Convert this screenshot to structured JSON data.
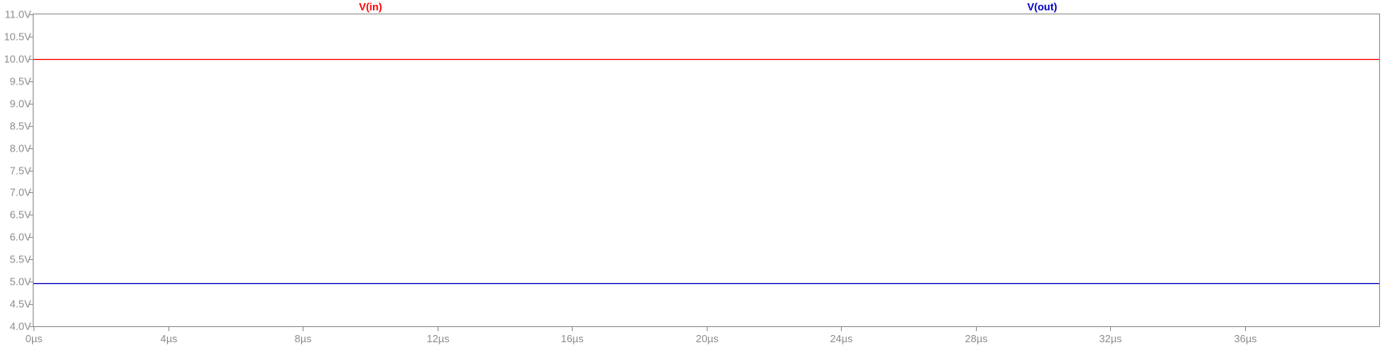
{
  "chart_data": {
    "type": "line",
    "x": [
      0,
      40
    ],
    "series": [
      {
        "name": "V(in)",
        "values": [
          10.0,
          10.0
        ],
        "color": "#ff0000"
      },
      {
        "name": "V(out)",
        "values": [
          4.97,
          4.97
        ],
        "color": "#0000c0"
      }
    ],
    "xlim": [
      0,
      40
    ],
    "ylim": [
      4.0,
      11.0
    ],
    "x_ticks": [
      0,
      4,
      8,
      12,
      16,
      20,
      24,
      28,
      32,
      36
    ],
    "x_tick_labels": [
      "0µs",
      "4µs",
      "8µs",
      "12µs",
      "16µs",
      "20µs",
      "24µs",
      "28µs",
      "32µs",
      "36µs"
    ],
    "y_ticks": [
      4.0,
      4.5,
      5.0,
      5.5,
      6.0,
      6.5,
      7.0,
      7.5,
      8.0,
      8.5,
      9.0,
      9.5,
      10.0,
      10.5,
      11.0
    ],
    "y_tick_labels": [
      "4.0V",
      "4.5V",
      "5.0V",
      "5.5V",
      "6.0V",
      "6.5V",
      "7.0V",
      "7.5V",
      "8.0V",
      "8.5V",
      "9.0V",
      "9.5V",
      "10.0V",
      "10.5V",
      "11.0V"
    ],
    "grid": false,
    "legend_placement": "top",
    "axis_color": "#8c8c8c"
  }
}
